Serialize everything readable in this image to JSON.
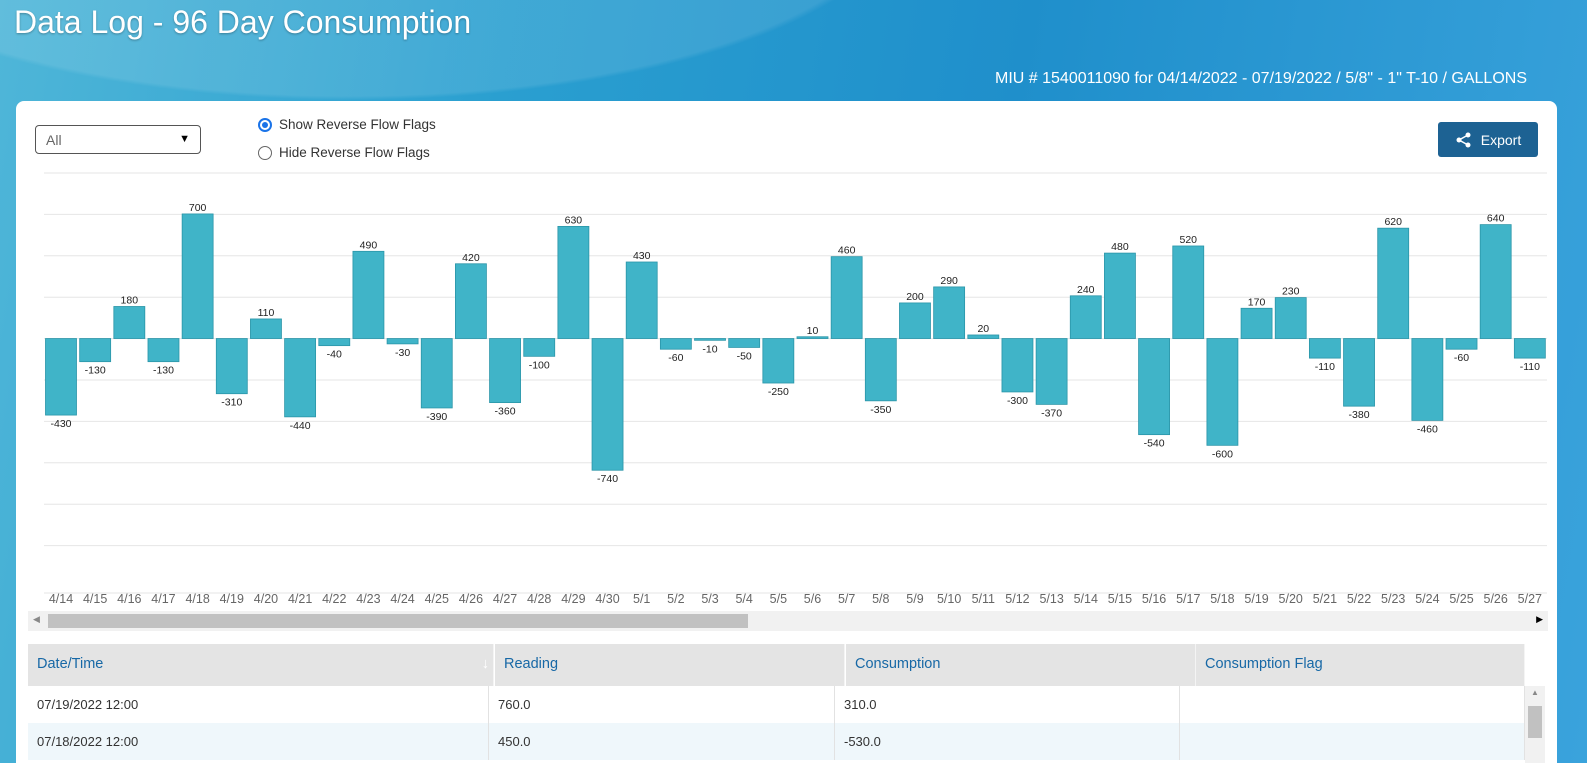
{
  "header": {
    "title": "Data Log - 96 Day Consumption",
    "subtitle": "MIU # 1540011090 for 04/14/2022 - 07/19/2022 / 5/8\" - 1\" T-10 / GALLONS"
  },
  "controls": {
    "filter_value": "All",
    "radio_show": "Show Reverse Flow Flags",
    "radio_hide": "Hide Reverse Flow Flags",
    "selected": "show",
    "export_label": "Export"
  },
  "chart_data": {
    "type": "bar",
    "bar_color": "#40b4c8",
    "grid": true,
    "ylim": [
      -1160,
      930
    ],
    "categories": [
      "4/14",
      "4/15",
      "4/16",
      "4/17",
      "4/18",
      "4/19",
      "4/20",
      "4/21",
      "4/22",
      "4/23",
      "4/24",
      "4/25",
      "4/26",
      "4/27",
      "4/28",
      "4/29",
      "4/30",
      "5/1",
      "5/2",
      "5/3",
      "5/4",
      "5/5",
      "5/6",
      "5/7",
      "5/8",
      "5/9",
      "5/10",
      "5/11",
      "5/12",
      "5/13",
      "5/14",
      "5/15",
      "5/16",
      "5/17",
      "5/18",
      "5/19",
      "5/20",
      "5/21",
      "5/22",
      "5/23",
      "5/24",
      "5/25",
      "5/26",
      "5/27"
    ],
    "values": [
      -430,
      -130,
      180,
      -130,
      700,
      -310,
      110,
      -440,
      -40,
      490,
      -30,
      -390,
      420,
      -360,
      -100,
      630,
      -740,
      430,
      -60,
      -10,
      -50,
      -250,
      10,
      460,
      -350,
      200,
      290,
      20,
      -300,
      -370,
      240,
      480,
      -540,
      520,
      -600,
      170,
      230,
      -110,
      -380,
      620,
      -460,
      -60,
      640,
      -110
    ]
  },
  "table": {
    "columns": [
      "Date/Time",
      "Reading",
      "Consumption",
      "Consumption Flag"
    ],
    "rows": [
      [
        "07/19/2022 12:00",
        "760.0",
        "310.0",
        ""
      ],
      [
        "07/18/2022 12:00",
        "450.0",
        "-530.0",
        ""
      ]
    ]
  }
}
